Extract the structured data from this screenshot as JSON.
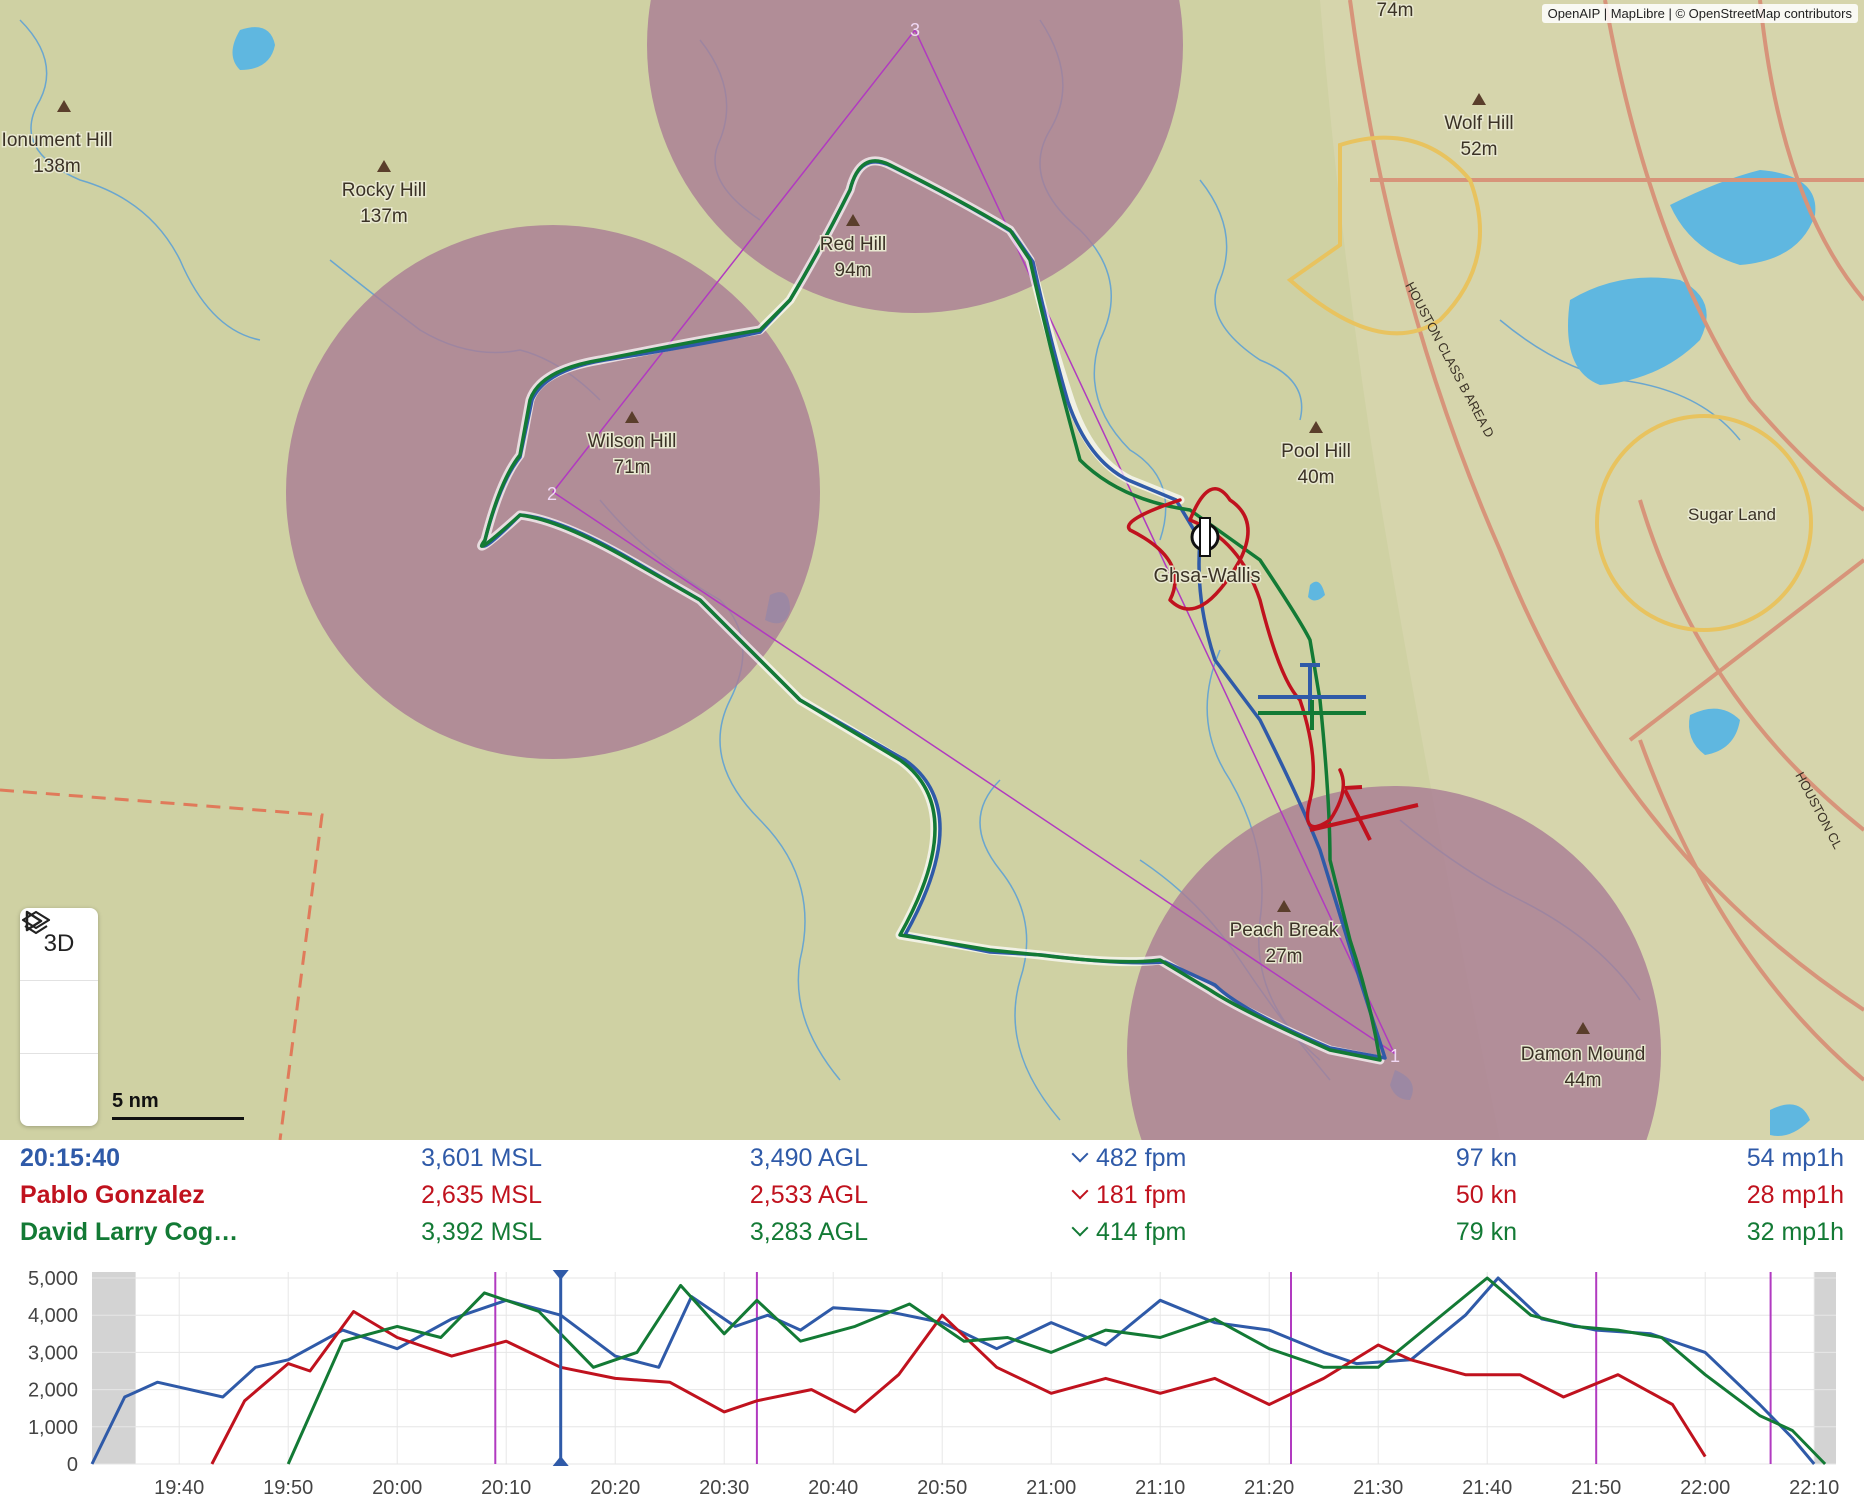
{
  "map": {
    "attribution": "OpenAIP | MapLibre | © OpenStreetMap contributors",
    "colors": {
      "terrain": "#cfd1a3",
      "water": "#5fb7e0",
      "restricted_zone": "#a97e95",
      "class_b_boundary": "#d7947a",
      "class_d_boundary": "#e8c35f",
      "task_line": "#b13ac0"
    },
    "peaks": [
      {
        "name": "Monument Hill",
        "label": "Ionument Hill",
        "elev": "138m"
      },
      {
        "name": "Rocky Hill",
        "label": "Rocky Hill",
        "elev": "137m"
      },
      {
        "name": "Red Hill",
        "label": "Red Hill",
        "elev": "94m"
      },
      {
        "name": "Wilson Hill",
        "label": "Wilson Hill",
        "elev": "71m"
      },
      {
        "name": "Wolf Hill",
        "label": "Wolf Hill",
        "elev": "52m"
      },
      {
        "name": "Pool Hill",
        "label": "Pool Hill",
        "elev": "40m"
      },
      {
        "name": "Peach Break",
        "label": "Peach Break",
        "elev": "27m"
      },
      {
        "name": "Damon Mound",
        "label": "Damon Mound",
        "elev": "44m"
      }
    ],
    "top_partial_label": "74m",
    "airport": "Ghsa-Wallis",
    "town": "Sugar Land",
    "airspace_labels": [
      "HOUSTON CLASS B AREA D",
      "HOUSTON CL"
    ],
    "turnpoints": [
      "1",
      "2",
      "3"
    ],
    "controls": {
      "mode_3d": "3D",
      "play_icon": "play-icon",
      "layers_icon": "layers-icon"
    },
    "scale_label": "5 nm"
  },
  "readout": {
    "rows": [
      {
        "name": "20:15:40",
        "msl": "3,601 MSL",
        "agl": "3,490 AGL",
        "vario": "482 fpm",
        "speed": "97 kn",
        "wind": "54 mp1h",
        "color": "#2f5aa8"
      },
      {
        "name": "Pablo Gonzalez",
        "msl": "2,635 MSL",
        "agl": "2,533 AGL",
        "vario": "181 fpm",
        "speed": "50 kn",
        "wind": "28 mp1h",
        "color": "#c0121e"
      },
      {
        "name": "David Larry Cog…",
        "msl": "3,392 MSL",
        "agl": "3,283 AGL",
        "vario": "414 fpm",
        "speed": "79 kn",
        "wind": "32 mp1h",
        "color": "#137a35"
      }
    ]
  },
  "chart_data": {
    "type": "line",
    "x_unit": "time (HH:MM)",
    "y_unit": "altitude (ft MSL)",
    "xlim": [
      "19:32",
      "22:12"
    ],
    "ylim": [
      0,
      5000
    ],
    "yticks": [
      "0",
      "1,000",
      "2,000",
      "3,000",
      "4,000",
      "5,000"
    ],
    "xticks": [
      "19:40",
      "19:50",
      "20:00",
      "20:10",
      "20:20",
      "20:30",
      "20:40",
      "20:50",
      "21:00",
      "21:10",
      "21:20",
      "21:30",
      "21:40",
      "21:50",
      "22:00",
      "22:10"
    ],
    "grid": true,
    "cursor_time": "20:15",
    "task_markers": [
      "20:09",
      "20:33",
      "21:22",
      "21:50",
      "22:06"
    ],
    "shaded_ranges": [
      [
        "19:32",
        "19:36"
      ],
      [
        "22:10",
        "22:12"
      ]
    ],
    "series": [
      {
        "color": "#2f5aa8",
        "x": [
          "19:32",
          "19:35",
          "19:38",
          "19:44",
          "19:47",
          "19:50",
          "19:55",
          "20:00",
          "20:05",
          "20:10",
          "20:15",
          "20:20",
          "20:24",
          "20:27",
          "20:31",
          "20:34",
          "20:37",
          "20:40",
          "20:45",
          "20:50",
          "20:55",
          "21:00",
          "21:05",
          "21:10",
          "21:15",
          "21:20",
          "21:25",
          "21:28",
          "21:33",
          "21:38",
          "21:41",
          "21:45",
          "21:50",
          "21:55",
          "22:00",
          "22:05",
          "22:08",
          "22:10"
        ],
        "y": [
          0,
          1800,
          2200,
          1800,
          2600,
          2800,
          3600,
          3100,
          3900,
          4400,
          4000,
          2900,
          2600,
          4500,
          3700,
          4000,
          3600,
          4200,
          4100,
          3800,
          3100,
          3800,
          3200,
          4400,
          3800,
          3600,
          3000,
          2700,
          2800,
          4000,
          5000,
          3900,
          3600,
          3500,
          3000,
          1600,
          700,
          0
        ]
      },
      {
        "color": "#c0121e",
        "x": [
          "19:32",
          "19:43",
          "19:46",
          "19:50",
          "19:52",
          "19:56",
          "20:00",
          "20:05",
          "20:10",
          "20:15",
          "20:20",
          "20:25",
          "20:30",
          "20:33",
          "20:38",
          "20:42",
          "20:46",
          "20:50",
          "20:55",
          "21:00",
          "21:05",
          "21:10",
          "21:15",
          "21:20",
          "21:25",
          "21:30",
          "21:33",
          "21:38",
          "21:43",
          "21:47",
          "21:52",
          "21:57",
          "22:00"
        ],
        "y": [
          null,
          0,
          1700,
          2700,
          2500,
          4100,
          3400,
          2900,
          3300,
          2600,
          2300,
          2200,
          1400,
          1700,
          2000,
          1400,
          2400,
          4000,
          2600,
          1900,
          2300,
          1900,
          2300,
          1600,
          2300,
          3200,
          2800,
          2400,
          2400,
          1800,
          2400,
          1600,
          200
        ]
      },
      {
        "color": "#137a35",
        "x": [
          "19:32",
          "19:50",
          "19:55",
          "20:00",
          "20:04",
          "20:08",
          "20:13",
          "20:18",
          "20:22",
          "20:26",
          "20:30",
          "20:33",
          "20:37",
          "20:42",
          "20:47",
          "20:52",
          "20:56",
          "21:00",
          "21:05",
          "21:10",
          "21:15",
          "21:20",
          "21:25",
          "21:30",
          "21:35",
          "21:40",
          "21:44",
          "21:48",
          "21:52",
          "21:56",
          "22:00",
          "22:05",
          "22:08",
          "22:11"
        ],
        "y": [
          null,
          0,
          3300,
          3700,
          3400,
          4600,
          4100,
          2600,
          3000,
          4800,
          3500,
          4400,
          3300,
          3700,
          4300,
          3300,
          3400,
          3000,
          3600,
          3400,
          3900,
          3100,
          2600,
          2600,
          3800,
          5000,
          4000,
          3700,
          3600,
          3400,
          2400,
          1300,
          900,
          0
        ]
      }
    ]
  }
}
